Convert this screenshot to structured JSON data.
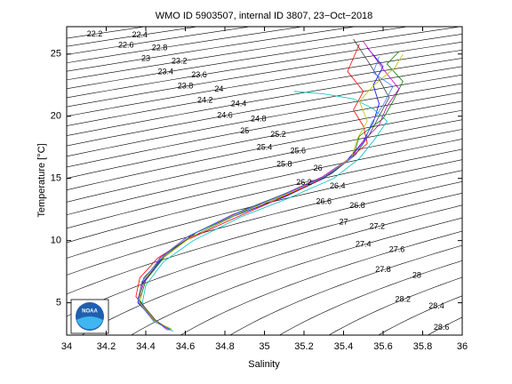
{
  "chart_data": {
    "type": "line",
    "title": "WMO ID 5903507, internal ID 3807, 23−Oct−2018",
    "x_label": "Salinity",
    "y_label": "Temperature [°C]",
    "logo_text": "NOAA",
    "xlim": [
      34,
      36
    ],
    "xticks": [
      34,
      34.2,
      34.4,
      34.6,
      34.8,
      35,
      35.2,
      35.4,
      35.6,
      35.8,
      36
    ],
    "ylim": [
      2.4,
      27.2
    ],
    "yticks": [
      5,
      10,
      15,
      20,
      25
    ],
    "contour_color": "#000000",
    "contour_levels": [
      22.2,
      22.4,
      22.6,
      22.8,
      23,
      23.2,
      23.4,
      23.6,
      23.8,
      24,
      24.2,
      24.4,
      24.6,
      24.8,
      25,
      25.2,
      25.4,
      25.6,
      25.8,
      26,
      26.2,
      26.4,
      26.6,
      26.8,
      27,
      27.2,
      27.4,
      27.6,
      27.8,
      28,
      28.2,
      28.4,
      28.6
    ],
    "series": [
      {
        "color": "#0000ff",
        "x": [
          34.53,
          34.45,
          34.36,
          34.38,
          34.48,
          34.62,
          34.85,
          35.1,
          35.3,
          35.42,
          35.5,
          35.55,
          35.58,
          35.55,
          35.6,
          35.52
        ],
        "values": [
          2.8,
          3.5,
          5,
          6.5,
          8.5,
          10.2,
          12,
          13.5,
          15,
          16.5,
          18,
          19.5,
          21,
          22.5,
          24,
          25.5
        ]
      },
      {
        "color": "#008000",
        "x": [
          34.52,
          34.44,
          34.37,
          34.4,
          34.5,
          34.65,
          34.9,
          35.15,
          35.33,
          35.45,
          35.48,
          35.6,
          35.65,
          35.7,
          35.62,
          35.68
        ],
        "values": [
          2.9,
          3.6,
          5.2,
          6.8,
          8.8,
          10.6,
          12.4,
          13.9,
          15.3,
          16.8,
          18.4,
          19.8,
          21.2,
          22.8,
          24.2,
          25.2
        ]
      },
      {
        "color": "#ff0000",
        "x": [
          34.5,
          34.43,
          34.35,
          34.37,
          34.46,
          34.6,
          34.82,
          35.05,
          35.27,
          35.4,
          35.52,
          35.5,
          35.45,
          35.5,
          35.42,
          35.48
        ],
        "values": [
          3.0,
          3.8,
          5.5,
          7,
          8.6,
          10,
          11.6,
          13.2,
          14.8,
          16.2,
          17.8,
          19.2,
          20.5,
          22,
          23.6,
          25.8
        ]
      },
      {
        "color": "#00bfbf",
        "x": [
          34.54,
          34.46,
          34.38,
          34.4,
          34.49,
          34.64,
          34.88,
          35.12,
          35.35,
          35.48,
          35.56,
          35.62,
          35.55,
          35.45,
          35.3,
          35.15
        ],
        "values": [
          2.7,
          3.4,
          4.8,
          6.4,
          8.3,
          10,
          11.9,
          13.4,
          15,
          16.6,
          18.2,
          19.6,
          20.6,
          21.4,
          21.8,
          22
        ]
      },
      {
        "color": "#bf00bf",
        "x": [
          34.51,
          34.44,
          34.36,
          34.39,
          34.47,
          34.61,
          34.84,
          35.08,
          35.29,
          35.43,
          35.5,
          35.58,
          35.62,
          35.68,
          35.6,
          35.5
        ],
        "values": [
          2.8,
          3.7,
          5.1,
          6.6,
          8.6,
          10.3,
          12.1,
          13.6,
          15.1,
          16.6,
          18,
          19.3,
          20.8,
          22.2,
          23.8,
          26
        ]
      },
      {
        "color": "#bfbf00",
        "x": [
          34.53,
          34.45,
          34.37,
          34.38,
          34.47,
          34.63,
          34.86,
          35.11,
          35.31,
          35.44,
          35.47,
          35.52,
          35.48,
          35.56,
          35.66,
          35.7
        ],
        "values": [
          2.9,
          3.5,
          5,
          6.6,
          8.4,
          10.3,
          12.1,
          13.7,
          15.2,
          16.7,
          18.2,
          19.6,
          21.2,
          22.6,
          23.9,
          25
        ]
      },
      {
        "color": "#404040",
        "x": [
          34.52,
          34.45,
          34.36,
          34.39,
          34.5,
          34.66,
          34.9,
          35.14,
          35.34,
          35.46,
          35.53,
          35.58,
          35.63,
          35.58,
          35.52,
          35.45
        ],
        "values": [
          2.8,
          3.6,
          5.3,
          7,
          8.9,
          10.7,
          12.5,
          14,
          15.4,
          16.9,
          18.5,
          20,
          21.5,
          23,
          24.5,
          26.2
        ]
      },
      {
        "color": "#4080ff",
        "x": [
          34.53,
          34.44,
          34.36,
          34.38,
          34.48,
          34.62,
          34.86,
          35.1,
          35.3,
          35.43,
          35.51,
          35.54,
          35.6,
          35.65,
          35.55,
          35.58
        ],
        "values": [
          2.8,
          3.5,
          5.1,
          6.7,
          8.7,
          10.4,
          12.2,
          13.7,
          15.1,
          16.5,
          18.1,
          19.4,
          20.9,
          22.4,
          23.5,
          24.8
        ]
      }
    ]
  }
}
